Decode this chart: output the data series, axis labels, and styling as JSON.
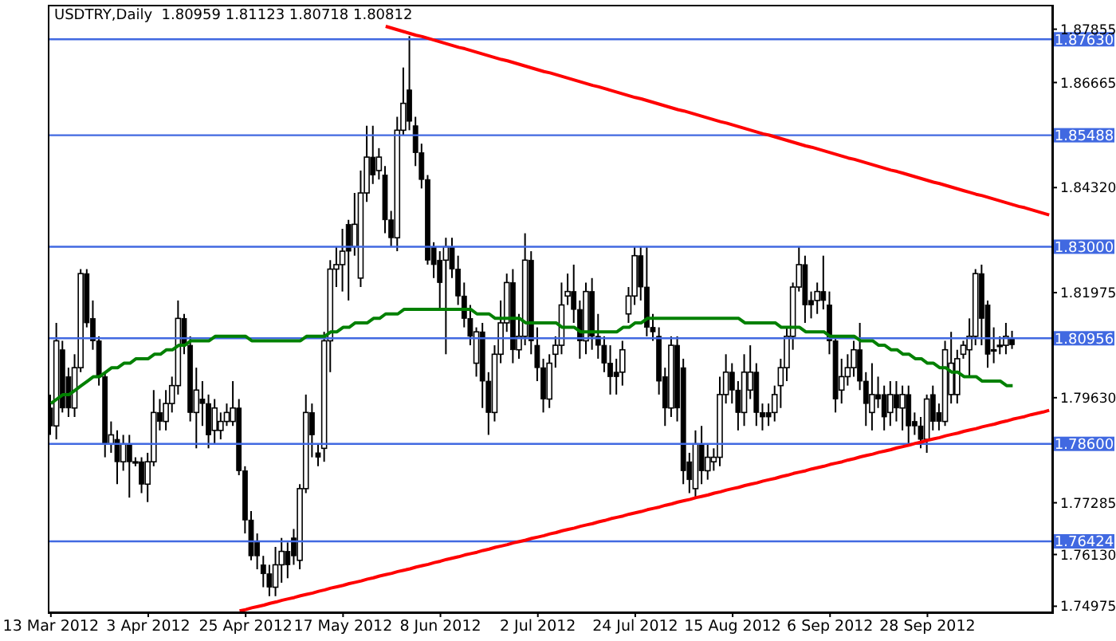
{
  "chart_data": {
    "type": "candlestick",
    "title": "USDTRY,Daily  1.80959 1.81123 1.80718 1.80812",
    "color": "#000000",
    "categories": [
      "13 Mar 2012",
      null,
      null,
      null,
      null,
      null,
      null,
      null,
      null,
      null,
      null,
      null,
      null,
      null,
      null,
      null,
      "3 Apr 2012",
      null,
      null,
      null,
      null,
      null,
      null,
      null,
      null,
      null,
      null,
      null,
      null,
      null,
      null,
      null,
      "25 Apr 2012",
      null,
      null,
      null,
      null,
      null,
      null,
      null,
      null,
      null,
      null,
      null,
      null,
      null,
      null,
      null,
      "17 May 2012",
      null,
      null,
      null,
      null,
      null,
      null,
      null,
      null,
      null,
      null,
      null,
      null,
      null,
      null,
      null,
      "8 Jun 2012",
      null,
      null,
      null,
      null,
      null,
      null,
      null,
      null,
      null,
      null,
      null,
      null,
      null,
      null,
      null,
      "2 Jul 2012",
      null,
      null,
      null,
      null,
      null,
      null,
      null,
      null,
      null,
      null,
      null,
      null,
      null,
      null,
      null,
      "24 Jul 2012",
      null,
      null,
      null,
      null,
      null,
      null,
      null,
      null,
      null,
      null,
      null,
      null,
      null,
      null,
      null,
      "15 Aug 2012",
      null,
      null,
      null,
      null,
      null,
      null,
      null,
      null,
      null,
      null,
      null,
      null,
      null,
      null,
      null,
      "6 Sep 2012",
      null,
      null,
      null,
      null,
      null,
      null,
      null,
      null,
      null,
      null,
      null,
      null,
      null,
      null,
      null,
      "28 Sep 2012",
      null,
      null,
      null,
      null,
      null,
      null,
      null,
      null,
      null,
      null,
      null,
      null,
      null,
      null,
      null,
      null,
      null,
      null,
      null,
      null
    ],
    "ohlc": [
      [
        1.794,
        1.797,
        1.788,
        1.79
      ],
      [
        1.79,
        1.813,
        1.787,
        1.809
      ],
      [
        1.807,
        1.809,
        1.793,
        1.794
      ],
      [
        1.801,
        1.803,
        1.792,
        1.794
      ],
      [
        1.794,
        1.806,
        1.792,
        1.803
      ],
      [
        1.803,
        1.825,
        1.802,
        1.824
      ],
      [
        1.824,
        1.825,
        1.812,
        1.813
      ],
      [
        1.814,
        1.818,
        1.807,
        1.809
      ],
      [
        1.809,
        1.81,
        1.799,
        1.801
      ],
      [
        1.801,
        1.802,
        1.783,
        1.786
      ],
      [
        1.786,
        1.791,
        1.784,
        1.788
      ],
      [
        1.787,
        1.789,
        1.777,
        1.782
      ],
      [
        1.782,
        1.788,
        1.78,
        1.786
      ],
      [
        1.786,
        1.788,
        1.774,
        1.782
      ],
      [
        1.782,
        1.783,
        1.781,
        1.782
      ],
      [
        1.782,
        1.783,
        1.775,
        1.777
      ],
      [
        1.777,
        1.784,
        1.773,
        1.782
      ],
      [
        1.782,
        1.798,
        1.781,
        1.793
      ],
      [
        1.793,
        1.796,
        1.789,
        1.791
      ],
      [
        1.791,
        1.798,
        1.789,
        1.795
      ],
      [
        1.795,
        1.801,
        1.793,
        1.799
      ],
      [
        1.799,
        1.818,
        1.797,
        1.814
      ],
      [
        1.814,
        1.815,
        1.806,
        1.808
      ],
      [
        1.808,
        1.81,
        1.791,
        1.793
      ],
      [
        1.793,
        1.803,
        1.785,
        1.798
      ],
      [
        1.796,
        1.8,
        1.79,
        1.795
      ],
      [
        1.795,
        1.797,
        1.785,
        1.788
      ],
      [
        1.789,
        1.796,
        1.786,
        1.794
      ],
      [
        1.789,
        1.793,
        1.787,
        1.791
      ],
      [
        1.791,
        1.795,
        1.79,
        1.793
      ],
      [
        1.791,
        1.8,
        1.79,
        1.794
      ],
      [
        1.794,
        1.796,
        1.779,
        1.78
      ],
      [
        1.78,
        1.781,
        1.766,
        1.769
      ],
      [
        1.769,
        1.771,
        1.76,
        1.761
      ],
      [
        1.764,
        1.766,
        1.758,
        1.761
      ],
      [
        1.759,
        1.761,
        1.754,
        1.757
      ],
      [
        1.757,
        1.759,
        1.752,
        1.754
      ],
      [
        1.754,
        1.763,
        1.752,
        1.759
      ],
      [
        1.759,
        1.765,
        1.755,
        1.762
      ],
      [
        1.762,
        1.764,
        1.756,
        1.759
      ],
      [
        1.765,
        1.767,
        1.759,
        1.761
      ],
      [
        1.76,
        1.777,
        1.758,
        1.776
      ],
      [
        1.776,
        1.797,
        1.775,
        1.793
      ],
      [
        1.793,
        1.795,
        1.783,
        1.788
      ],
      [
        1.784,
        1.786,
        1.781,
        1.783
      ],
      [
        1.785,
        1.811,
        1.782,
        1.809
      ],
      [
        1.809,
        1.827,
        1.802,
        1.825
      ],
      [
        1.825,
        1.83,
        1.821,
        1.826
      ],
      [
        1.826,
        1.834,
        1.82,
        1.829
      ],
      [
        1.835,
        1.836,
        1.818,
        1.829
      ],
      [
        1.83,
        1.842,
        1.828,
        1.835
      ],
      [
        1.823,
        1.847,
        1.821,
        1.842
      ],
      [
        1.842,
        1.857,
        1.84,
        1.85
      ],
      [
        1.85,
        1.857,
        1.844,
        1.846
      ],
      [
        1.847,
        1.852,
        1.845,
        1.85
      ],
      [
        1.846,
        1.848,
        1.833,
        1.836
      ],
      [
        1.836,
        1.838,
        1.83,
        1.832
      ],
      [
        1.832,
        1.859,
        1.829,
        1.856
      ],
      [
        1.856,
        1.87,
        1.855,
        1.862
      ],
      [
        1.865,
        1.877,
        1.856,
        1.858
      ],
      [
        1.857,
        1.859,
        1.848,
        1.851
      ],
      [
        1.851,
        1.853,
        1.843,
        1.845
      ],
      [
        1.845,
        1.846,
        1.826,
        1.827
      ],
      [
        1.83,
        1.831,
        1.823,
        1.826
      ],
      [
        1.827,
        1.829,
        1.816,
        1.822
      ],
      [
        1.827,
        1.832,
        1.806,
        1.83
      ],
      [
        1.83,
        1.832,
        1.823,
        1.825
      ],
      [
        1.825,
        1.828,
        1.817,
        1.819
      ],
      [
        1.819,
        1.822,
        1.812,
        1.814
      ],
      [
        1.814,
        1.817,
        1.808,
        1.81
      ],
      [
        1.804,
        1.812,
        1.801,
        1.811
      ],
      [
        1.811,
        1.813,
        1.794,
        1.8
      ],
      [
        1.8,
        1.802,
        1.788,
        1.793
      ],
      [
        1.793,
        1.808,
        1.791,
        1.806
      ],
      [
        1.806,
        1.818,
        1.804,
        1.813
      ],
      [
        1.813,
        1.824,
        1.811,
        1.822
      ],
      [
        1.822,
        1.825,
        1.804,
        1.807
      ],
      [
        1.807,
        1.815,
        1.805,
        1.81
      ],
      [
        1.81,
        1.833,
        1.808,
        1.827
      ],
      [
        1.827,
        1.829,
        1.806,
        1.809
      ],
      [
        1.808,
        1.812,
        1.8,
        1.803
      ],
      [
        1.803,
        1.805,
        1.793,
        1.796
      ],
      [
        1.796,
        1.806,
        1.794,
        1.804
      ],
      [
        1.806,
        1.81,
        1.803,
        1.808
      ],
      [
        1.808,
        1.822,
        1.806,
        1.817
      ],
      [
        1.819,
        1.824,
        1.817,
        1.82
      ],
      [
        1.82,
        1.826,
        1.813,
        1.816
      ],
      [
        1.816,
        1.818,
        1.805,
        1.809
      ],
      [
        1.809,
        1.822,
        1.806,
        1.82
      ],
      [
        1.82,
        1.823,
        1.807,
        1.81
      ],
      [
        1.81,
        1.815,
        1.805,
        1.808
      ],
      [
        1.808,
        1.81,
        1.802,
        1.804
      ],
      [
        1.804,
        1.808,
        1.797,
        1.801
      ],
      [
        1.802,
        1.805,
        1.797,
        1.801
      ],
      [
        1.802,
        1.809,
        1.799,
        1.807
      ],
      [
        1.815,
        1.821,
        1.813,
        1.819
      ],
      [
        1.819,
        1.83,
        1.817,
        1.828
      ],
      [
        1.828,
        1.83,
        1.818,
        1.821
      ],
      [
        1.821,
        1.83,
        1.81,
        1.812
      ],
      [
        1.812,
        1.815,
        1.809,
        1.811
      ],
      [
        1.81,
        1.812,
        1.797,
        1.8
      ],
      [
        1.801,
        1.803,
        1.79,
        1.794
      ],
      [
        1.794,
        1.81,
        1.792,
        1.808
      ],
      [
        1.808,
        1.81,
        1.791,
        1.794
      ],
      [
        1.803,
        1.805,
        1.777,
        1.78
      ],
      [
        1.782,
        1.784,
        1.775,
        1.778
      ],
      [
        1.776,
        1.789,
        1.774,
        1.786
      ],
      [
        1.786,
        1.79,
        1.777,
        1.78
      ],
      [
        1.78,
        1.786,
        1.778,
        1.783
      ],
      [
        1.782,
        1.785,
        1.78,
        1.783
      ],
      [
        1.783,
        1.801,
        1.781,
        1.797
      ],
      [
        1.797,
        1.806,
        1.795,
        1.802
      ],
      [
        1.802,
        1.804,
        1.795,
        1.798
      ],
      [
        1.798,
        1.8,
        1.789,
        1.793
      ],
      [
        1.793,
        1.806,
        1.79,
        1.802
      ],
      [
        1.798,
        1.808,
        1.796,
        1.802
      ],
      [
        1.802,
        1.804,
        1.79,
        1.793
      ],
      [
        1.793,
        1.795,
        1.789,
        1.792
      ],
      [
        1.793,
        1.795,
        1.79,
        1.792
      ],
      [
        1.793,
        1.799,
        1.791,
        1.797
      ],
      [
        1.799,
        1.805,
        1.794,
        1.803
      ],
      [
        1.803,
        1.812,
        1.8,
        1.81
      ],
      [
        1.81,
        1.822,
        1.807,
        1.821
      ],
      [
        1.821,
        1.83,
        1.82,
        1.826
      ],
      [
        1.826,
        1.828,
        1.813,
        1.817
      ],
      [
        1.818,
        1.82,
        1.814,
        1.817
      ],
      [
        1.818,
        1.822,
        1.815,
        1.82
      ],
      [
        1.82,
        1.828,
        1.816,
        1.818
      ],
      [
        1.817,
        1.82,
        1.806,
        1.809
      ],
      [
        1.809,
        1.81,
        1.793,
        1.796
      ],
      [
        1.798,
        1.805,
        1.795,
        1.801
      ],
      [
        1.801,
        1.806,
        1.799,
        1.803
      ],
      [
        1.803,
        1.809,
        1.801,
        1.807
      ],
      [
        1.807,
        1.813,
        1.798,
        1.8
      ],
      [
        1.8,
        1.802,
        1.79,
        1.795
      ],
      [
        1.793,
        1.804,
        1.789,
        1.797
      ],
      [
        1.797,
        1.801,
        1.794,
        1.796
      ],
      [
        1.797,
        1.799,
        1.789,
        1.792
      ],
      [
        1.793,
        1.8,
        1.79,
        1.797
      ],
      [
        1.797,
        1.8,
        1.791,
        1.794
      ],
      [
        1.794,
        1.799,
        1.789,
        1.797
      ],
      [
        1.797,
        1.799,
        1.786,
        1.79
      ],
      [
        1.791,
        1.793,
        1.788,
        1.79
      ],
      [
        1.79,
        1.792,
        1.785,
        1.787
      ],
      [
        1.787,
        1.797,
        1.784,
        1.796
      ],
      [
        1.797,
        1.799,
        1.789,
        1.791
      ],
      [
        1.793,
        1.795,
        1.789,
        1.791
      ],
      [
        1.791,
        1.809,
        1.79,
        1.807
      ],
      [
        1.797,
        1.811,
        1.795,
        1.804
      ],
      [
        1.797,
        1.807,
        1.795,
        1.805
      ],
      [
        1.806,
        1.809,
        1.805,
        1.808
      ],
      [
        1.807,
        1.814,
        1.801,
        1.81
      ],
      [
        1.81,
        1.825,
        1.808,
        1.824
      ],
      [
        1.824,
        1.826,
        1.808,
        1.814
      ],
      [
        1.817,
        1.818,
        1.803,
        1.806
      ],
      [
        1.807,
        1.812,
        1.804,
        1.807
      ],
      [
        1.808,
        1.81,
        1.806,
        1.808
      ],
      [
        1.808,
        1.813,
        1.806,
        1.81
      ],
      [
        1.80959,
        1.81123,
        1.80718,
        1.80812
      ],
      null,
      null,
      null,
      null,
      null,
      null
    ],
    "series": [
      {
        "type": "line",
        "color": "#008000",
        "values": [
          1.795,
          1.796,
          1.797,
          1.797,
          1.798,
          1.799,
          1.8,
          1.801,
          1.801,
          1.802,
          1.803,
          1.803,
          1.804,
          1.804,
          1.805,
          1.805,
          1.805,
          1.806,
          1.806,
          1.807,
          1.807,
          1.808,
          1.808,
          1.809,
          1.809,
          1.809,
          1.809,
          1.81,
          1.81,
          1.81,
          1.81,
          1.81,
          1.81,
          1.809,
          1.809,
          1.809,
          1.809,
          1.809,
          1.809,
          1.809,
          1.809,
          1.809,
          1.81,
          1.81,
          1.81,
          1.81,
          1.811,
          1.811,
          1.812,
          1.812,
          1.813,
          1.813,
          1.813,
          1.814,
          1.814,
          1.815,
          1.815,
          1.815,
          1.816,
          1.816,
          1.816,
          1.816,
          1.816,
          1.816,
          1.816,
          1.816,
          1.816,
          1.816,
          1.816,
          1.816,
          1.815,
          1.815,
          1.815,
          1.814,
          1.814,
          1.814,
          1.814,
          1.814,
          1.813,
          1.813,
          1.813,
          1.813,
          1.813,
          1.813,
          1.812,
          1.812,
          1.812,
          1.811,
          1.811,
          1.811,
          1.811,
          1.811,
          1.811,
          1.811,
          1.812,
          1.812,
          1.813,
          1.813,
          1.814,
          1.814,
          1.814,
          1.814,
          1.814,
          1.814,
          1.814,
          1.814,
          1.814,
          1.814,
          1.814,
          1.814,
          1.814,
          1.814,
          1.814,
          1.814,
          1.813,
          1.813,
          1.813,
          1.813,
          1.813,
          1.813,
          1.812,
          1.812,
          1.812,
          1.812,
          1.811,
          1.811,
          1.811,
          1.811,
          1.81,
          1.81,
          1.81,
          1.81,
          1.81,
          1.809,
          1.809,
          1.809,
          1.808,
          1.808,
          1.807,
          1.807,
          1.806,
          1.806,
          1.805,
          1.805,
          1.804,
          1.804,
          1.803,
          1.803,
          1.802,
          1.802,
          1.801,
          1.801,
          1.801,
          1.8,
          1.8,
          1.8,
          1.8,
          1.799,
          1.799,
          null,
          null,
          null,
          null,
          null,
          null
        ]
      },
      {
        "type": "line",
        "color": "#ff0000",
        "values": [
          null,
          null,
          null,
          null,
          null,
          null,
          null,
          null,
          null,
          null,
          null,
          null,
          null,
          null,
          null,
          null,
          null,
          null,
          null,
          null,
          null,
          null,
          null,
          null,
          null,
          null,
          null,
          null,
          null,
          null,
          null,
          null,
          null,
          null,
          null,
          null,
          null,
          null,
          null,
          null,
          null,
          null,
          null,
          null,
          null,
          null,
          null,
          null,
          null,
          null,
          null,
          null,
          null,
          null,
          null,
          1.8792,
          1.8788,
          1.8784,
          1.878,
          1.8776,
          1.8772,
          1.8769,
          1.8765,
          1.8761,
          1.8757,
          1.8753,
          1.8749,
          1.8745,
          1.8742,
          1.8738,
          1.8734,
          1.873,
          1.8726,
          1.8722,
          1.8718,
          1.8715,
          1.8711,
          1.8707,
          1.8703,
          1.8699,
          1.8695,
          1.8691,
          1.8688,
          1.8684,
          1.868,
          1.8676,
          1.8672,
          1.8668,
          1.8664,
          1.866,
          1.8657,
          1.8653,
          1.8649,
          1.8645,
          1.8641,
          1.8637,
          1.8633,
          1.863,
          1.8626,
          1.8622,
          1.8618,
          1.8614,
          1.861,
          1.8606,
          1.8603,
          1.8599,
          1.8595,
          1.8591,
          1.8587,
          1.8583,
          1.8579,
          1.8576,
          1.8572,
          1.8568,
          1.8564,
          1.856,
          1.8556,
          1.8552,
          1.8549,
          1.8545,
          1.8541,
          1.8537,
          1.8533,
          1.8529,
          1.8525,
          1.8522,
          1.8518,
          1.8514,
          1.851,
          1.8506,
          1.8502,
          1.8498,
          1.8495,
          1.8491,
          1.8487,
          1.8483,
          1.8479,
          1.8475,
          1.8471,
          1.8468,
          1.8464,
          1.846,
          1.8456,
          1.8452,
          1.8448,
          1.8444,
          1.8441,
          1.8437,
          1.8433,
          1.8429,
          1.8425,
          1.8421,
          1.8417,
          1.8414,
          1.841,
          1.8406,
          1.8402,
          1.8398,
          1.8394,
          1.839,
          1.8387,
          1.8383,
          1.8379,
          1.8375,
          1.8371
        ]
      },
      {
        "type": "line",
        "color": "#ff0000",
        "values": [
          null,
          null,
          null,
          null,
          null,
          null,
          null,
          null,
          null,
          null,
          null,
          null,
          null,
          null,
          null,
          null,
          null,
          null,
          null,
          null,
          null,
          null,
          null,
          null,
          null,
          null,
          null,
          null,
          null,
          null,
          null,
          1.7487,
          1.749,
          1.7494,
          1.7497,
          1.75,
          1.7504,
          1.7507,
          1.7511,
          1.7514,
          1.7517,
          1.7521,
          1.7524,
          1.7527,
          1.7531,
          1.7534,
          1.7538,
          1.7541,
          1.7544,
          1.7548,
          1.7551,
          1.7554,
          1.7558,
          1.7561,
          1.7565,
          1.7568,
          1.7571,
          1.7575,
          1.7578,
          1.7581,
          1.7585,
          1.7588,
          1.7591,
          1.7595,
          1.7598,
          1.7602,
          1.7605,
          1.7608,
          1.7612,
          1.7615,
          1.7618,
          1.7622,
          1.7625,
          1.7629,
          1.7632,
          1.7635,
          1.7639,
          1.7642,
          1.7645,
          1.7649,
          1.7652,
          1.7655,
          1.7659,
          1.7662,
          1.7666,
          1.7669,
          1.7672,
          1.7676,
          1.7679,
          1.7682,
          1.7686,
          1.7689,
          1.7693,
          1.7696,
          1.7699,
          1.7703,
          1.7706,
          1.7709,
          1.7713,
          1.7716,
          1.7719,
          1.7723,
          1.7726,
          1.773,
          1.7733,
          1.7736,
          1.774,
          1.7743,
          1.7746,
          1.775,
          1.7753,
          1.7757,
          1.776,
          1.7763,
          1.7767,
          1.777,
          1.7773,
          1.7777,
          1.778,
          1.7783,
          1.7787,
          1.779,
          1.7794,
          1.7797,
          1.78,
          1.7804,
          1.7807,
          1.781,
          1.7814,
          1.7817,
          1.782,
          1.7824,
          1.7827,
          1.7831,
          1.7834,
          1.7837,
          1.7841,
          1.7844,
          1.7847,
          1.7851,
          1.7854,
          1.7857,
          1.7861,
          1.7864,
          1.7868,
          1.7871,
          1.7874,
          1.7878,
          1.7881,
          1.7884,
          1.7888,
          1.7891,
          1.7894,
          1.7898,
          1.7901,
          1.7904,
          1.7908,
          1.7911,
          1.7915,
          1.7918,
          1.7921,
          1.7925,
          1.7928,
          1.7931,
          1.7935
        ]
      }
    ],
    "ylim": [
      1.7484,
      1.884
    ],
    "yticks": [
      1.87855,
      1.86665,
      {
        "value": 1.8432,
        "label": "1.84320"
      },
      1.81975,
      {
        "value": 1.7963,
        "label": "1.79630"
      },
      1.77285,
      {
        "value": 1.7613,
        "label": "1.76130"
      },
      1.74975
    ],
    "ref_lines": [
      {
        "axis": "y",
        "value": 1.8763,
        "label": "1.87630",
        "color": "#4169e1"
      },
      {
        "axis": "y",
        "value": 1.85488,
        "label": "1.85488",
        "color": "#4169e1"
      },
      {
        "axis": "y",
        "value": 1.83,
        "label": "1.83000",
        "color": "#4169e1"
      },
      {
        "axis": "y",
        "value": 1.80956,
        "label": "1.80956",
        "color": "#4169e1"
      },
      {
        "axis": "y",
        "value": 1.786,
        "label": "1.78600",
        "color": "#4169e1"
      },
      {
        "axis": "y",
        "value": 1.76424,
        "label": "1.76424",
        "color": "#4169e1"
      }
    ]
  }
}
